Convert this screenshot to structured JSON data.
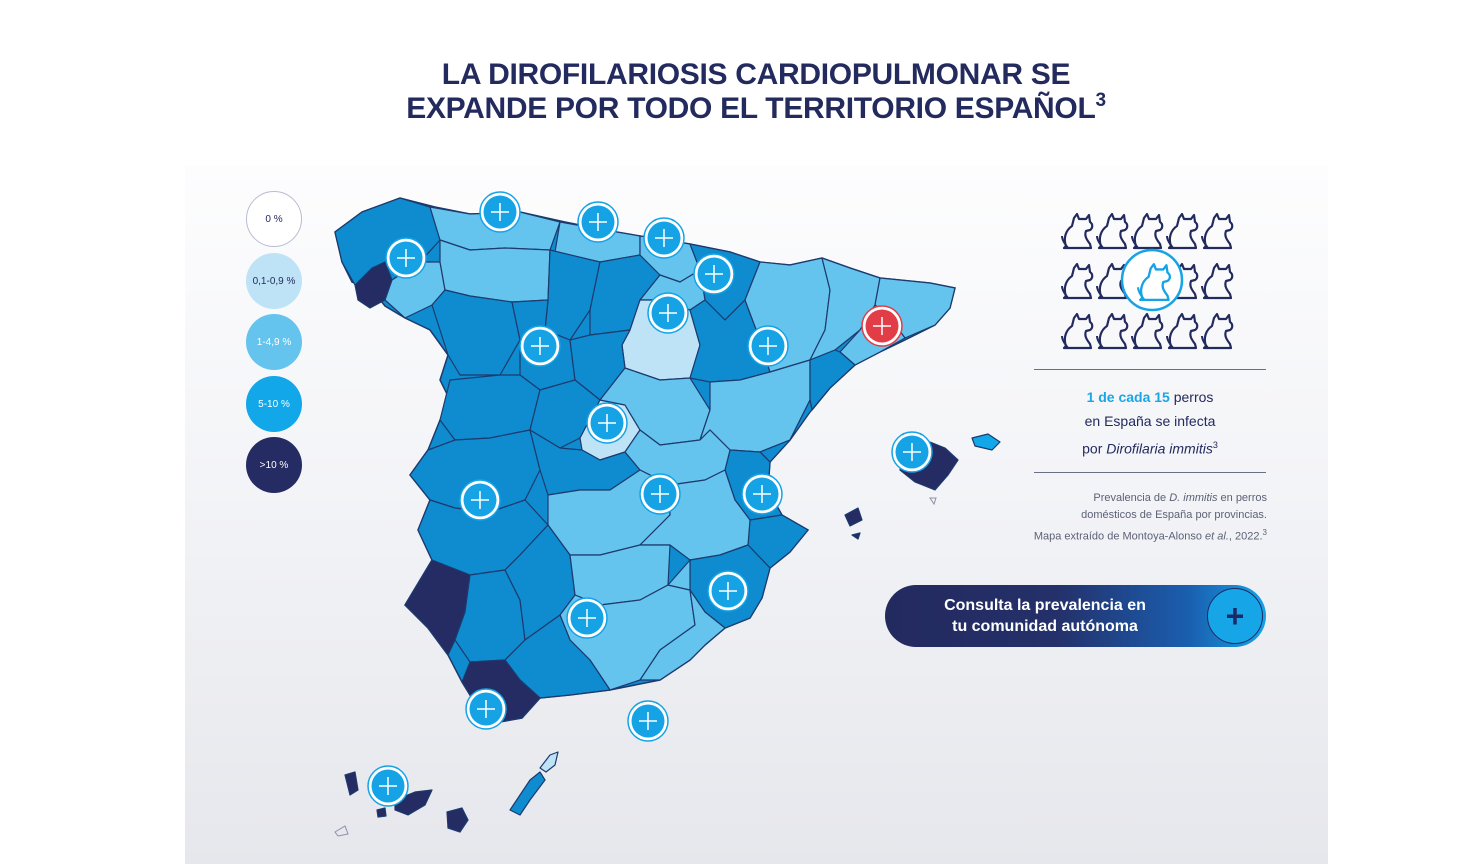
{
  "title": {
    "line1": "LA DIROFILARIOSIS CARDIOPULMONAR SE",
    "line2": "EXPANDE POR TODO EL TERRITORIO ESPAÑOL",
    "ref": "3"
  },
  "legend": {
    "items": [
      {
        "label": "0 %",
        "color": "#ffffff"
      },
      {
        "label": "0,1-0,9 %",
        "color": "#bfe3f6"
      },
      {
        "label": "1-4,9 %",
        "color": "#64c4ee"
      },
      {
        "label": "5-10 %",
        "color": "#11a7e8"
      },
      {
        "label": ">10 %",
        "color": "#252b63"
      }
    ]
  },
  "colors": {
    "navy": "#232a5e",
    "accent": "#15a3e6",
    "highlight_marker": "#e23c46",
    "rule": "#6b6f86"
  },
  "stat": {
    "highlight": "1 de cada 15",
    "line1_rest": " perros",
    "line2": "en España se infecta",
    "line3_prefix": "por ",
    "species": "Dirofilaria immitis",
    "ref": "3"
  },
  "source": {
    "line1_prefix": "Prevalencia de ",
    "species_abbr": "D. immitis",
    "line1_suffix": " en perros",
    "line2": "domésticos de España por provincias.",
    "line3_prefix": "Mapa extraído de Montoya-Alonso ",
    "etal": "et al.",
    "line3_suffix": ", 2022.",
    "ref": "3"
  },
  "cta": {
    "label_line1": "Consulta la prevalencia en",
    "label_line2": "tu comunidad autónoma",
    "icon": "plus-icon",
    "icon_glyph": "+"
  },
  "map": {
    "marker_icon": "plus-icon",
    "markers": [
      {
        "name": "galicia",
        "state": "default"
      },
      {
        "name": "asturias",
        "state": "default"
      },
      {
        "name": "cantabria",
        "state": "default"
      },
      {
        "name": "pais-vasco",
        "state": "default"
      },
      {
        "name": "navarra",
        "state": "default"
      },
      {
        "name": "la-rioja",
        "state": "default"
      },
      {
        "name": "castilla-y-leon",
        "state": "default"
      },
      {
        "name": "aragon",
        "state": "default"
      },
      {
        "name": "cataluna",
        "state": "selected"
      },
      {
        "name": "madrid",
        "state": "default"
      },
      {
        "name": "extremadura",
        "state": "default"
      },
      {
        "name": "castilla-la-mancha",
        "state": "default"
      },
      {
        "name": "comunidad-valenciana",
        "state": "default"
      },
      {
        "name": "islas-baleares",
        "state": "default"
      },
      {
        "name": "murcia",
        "state": "default"
      },
      {
        "name": "andalucia",
        "state": "default"
      },
      {
        "name": "ceuta",
        "state": "default"
      },
      {
        "name": "melilla",
        "state": "default"
      },
      {
        "name": "canarias",
        "state": "default"
      }
    ]
  }
}
